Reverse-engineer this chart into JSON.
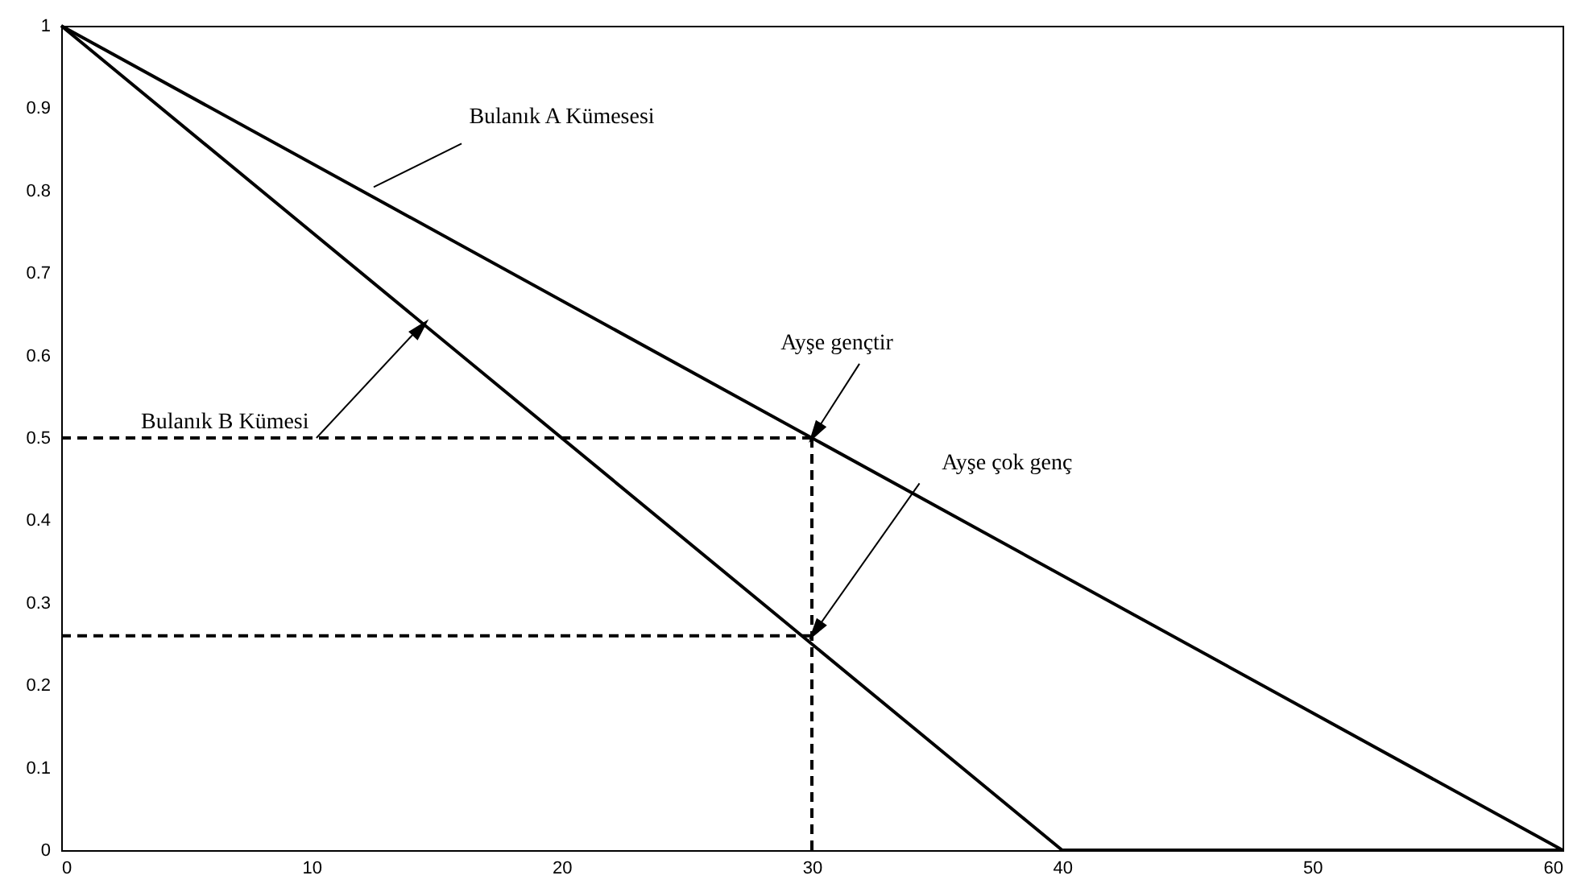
{
  "chart_data": {
    "type": "line",
    "xlim": [
      0,
      60
    ],
    "xticks": [
      0,
      10,
      20,
      30,
      40,
      50,
      60
    ],
    "ylim": [
      0,
      1
    ],
    "yticks": [
      0,
      0.1,
      0.2,
      0.3,
      0.4,
      0.5,
      0.6,
      0.7,
      0.8,
      0.9,
      1
    ],
    "grid": false,
    "marker": "none",
    "series": [
      {
        "color": "#000000",
        "line_style": "solid",
        "x": [
          0,
          60
        ],
        "values": [
          1,
          0
        ]
      },
      {
        "color": "#000000",
        "line_style": "solid",
        "x": [
          0,
          40,
          60
        ],
        "values": [
          1,
          0,
          0
        ]
      },
      {
        "color": "#000000",
        "line_style": "dashed",
        "x": [
          0,
          30
        ],
        "values": [
          0.5,
          0.5
        ]
      },
      {
        "color": "#000000",
        "line_style": "dashed",
        "x": [
          30,
          30
        ],
        "values": [
          0.5,
          0
        ]
      },
      {
        "color": "#000000",
        "line_style": "dashed",
        "x": [
          0,
          30
        ],
        "values": [
          0.26,
          0.26
        ]
      }
    ],
    "annotations": [
      {
        "text": "Bulanık A Kümesesi",
        "x": 12.2,
        "y": 0.8
      },
      {
        "text": "Bulanık B Kümesi",
        "x": 14.5,
        "y": 0.64
      },
      {
        "text": "Ayşe gençtir",
        "x": 30,
        "y": 0.5
      },
      {
        "text": "Ayşe çok genç",
        "x": 30,
        "y": 0.26
      }
    ]
  }
}
